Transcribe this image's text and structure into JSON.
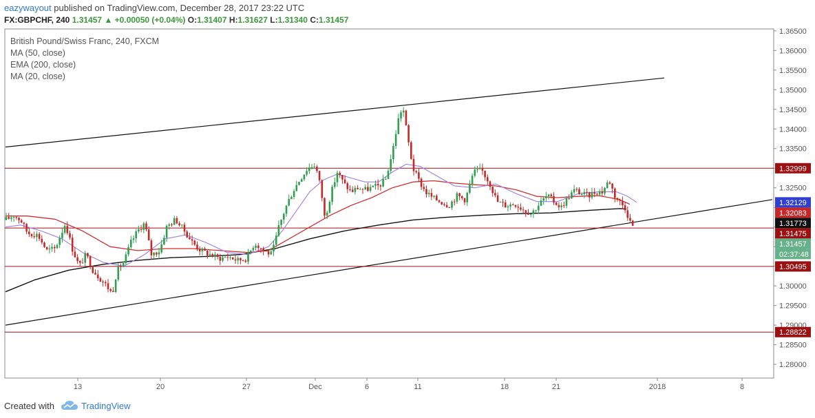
{
  "header": {
    "author": "eazywayout",
    "published": "published on TradingView.com, December 28, 2017 23:22 UTC",
    "symbol": "FX:GBPCHF, 240",
    "last": "1.31457",
    "change": "+0.00050 (+0.04%)",
    "o_label": "O:",
    "o": "1.31407",
    "h_label": "H:",
    "h": "1.31627",
    "l_label": "L:",
    "l": "1.31340",
    "c_label": "C:",
    "c": "1.31457"
  },
  "legend": {
    "title": "British Pound/Swiss Franc, 240, FXCM",
    "items": [
      "MA (50, close)",
      "EMA (200, close)",
      "MA (20, close)"
    ]
  },
  "footer": {
    "created_with": "Created with",
    "brand": "TradingView",
    "logo_icon": "tradingview-cloud-icon"
  },
  "colors": {
    "up": "#2e9e4f",
    "down": "#c62828",
    "ma50": "#d32f2f",
    "ema200": "#111111",
    "ma20": "#9b7fe6",
    "level": "#a01010",
    "trend": "#111111"
  },
  "chart_data": {
    "type": "candlestick",
    "ylim": [
      1.2765,
      1.3655
    ],
    "y_ticks": [
      "1.36500",
      "1.36000",
      "1.35500",
      "1.35000",
      "1.34500",
      "1.34000",
      "1.33500",
      "1.33000",
      "1.32500",
      "1.32000",
      "1.31500",
      "1.31000",
      "1.30500",
      "1.30000",
      "1.29500",
      "1.29000",
      "1.28500",
      "1.28000"
    ],
    "x_ticks": [
      {
        "label": "13",
        "x": 113
      },
      {
        "label": "20",
        "x": 233
      },
      {
        "label": "27",
        "x": 358
      },
      {
        "label": "Dec",
        "x": 458
      },
      {
        "label": "6",
        "x": 533
      },
      {
        "label": "11",
        "x": 607
      },
      {
        "label": "18",
        "x": 733
      },
      {
        "label": "21",
        "x": 808
      },
      {
        "label": "2018",
        "x": 955
      },
      {
        "label": "8",
        "x": 1078
      }
    ],
    "levels": [
      1.32999,
      1.31475,
      1.30495,
      1.28822
    ],
    "price_tags": [
      {
        "label": "1.32999",
        "value": 1.32999,
        "bg": "#9b1010",
        "fg": "#ffffff"
      },
      {
        "label": "1.32129",
        "value": 1.32129,
        "bg": "#2f3fd1",
        "fg": "#ffffff"
      },
      {
        "label": "1.32083",
        "value": 1.32083,
        "bg": "#c62828",
        "fg": "#ffffff"
      },
      {
        "label": "1.31773",
        "value": 1.31773,
        "bg": "#111111",
        "fg": "#ffffff"
      },
      {
        "label": "1.31475",
        "value": 1.31475,
        "bg": "#9b1010",
        "fg": "#ffffff"
      },
      {
        "label": "1.31457",
        "value": 1.31457,
        "bg": "#66b08a",
        "fg": "#ffffff"
      },
      {
        "label": "02:37:48",
        "value": 1.31255,
        "bg": "#66b08a",
        "fg": "#ffffff"
      },
      {
        "label": "1.30495",
        "value": 1.30495,
        "bg": "#9b1010",
        "fg": "#ffffff"
      },
      {
        "label": "1.28822",
        "value": 1.28822,
        "bg": "#9b1010",
        "fg": "#ffffff"
      }
    ],
    "trendlines": [
      {
        "x1": 8,
        "y1": 1.3354,
        "x2": 965,
        "y2": 1.353
      },
      {
        "x1": 8,
        "y1": 1.29,
        "x2": 1122,
        "y2": 1.322
      }
    ],
    "anchors": {
      "close": [
        [
          8,
          1.3168
        ],
        [
          20,
          1.318
        ],
        [
          30,
          1.3168
        ],
        [
          40,
          1.3135
        ],
        [
          55,
          1.313
        ],
        [
          68,
          1.309
        ],
        [
          80,
          1.3095
        ],
        [
          95,
          1.316
        ],
        [
          105,
          1.3095
        ],
        [
          115,
          1.305
        ],
        [
          125,
          1.308
        ],
        [
          135,
          1.304
        ],
        [
          145,
          1.302
        ],
        [
          155,
          1.3
        ],
        [
          163,
          1.298
        ],
        [
          170,
          1.304
        ],
        [
          180,
          1.306
        ],
        [
          190,
          1.311
        ],
        [
          200,
          1.314
        ],
        [
          210,
          1.316
        ],
        [
          220,
          1.308
        ],
        [
          232,
          1.309
        ],
        [
          242,
          1.315
        ],
        [
          255,
          1.317
        ],
        [
          268,
          1.314
        ],
        [
          280,
          1.311
        ],
        [
          292,
          1.309
        ],
        [
          305,
          1.308
        ],
        [
          318,
          1.307
        ],
        [
          332,
          1.3075
        ],
        [
          345,
          1.3065
        ],
        [
          358,
          1.307
        ],
        [
          370,
          1.311
        ],
        [
          383,
          1.309
        ],
        [
          395,
          1.308
        ],
        [
          405,
          1.315
        ],
        [
          415,
          1.32
        ],
        [
          425,
          1.324
        ],
        [
          435,
          1.327
        ],
        [
          447,
          1.33
        ],
        [
          458,
          1.331
        ],
        [
          466,
          1.325
        ],
        [
          472,
          1.317
        ],
        [
          480,
          1.323
        ],
        [
          490,
          1.329
        ],
        [
          500,
          1.326
        ],
        [
          510,
          1.324
        ],
        [
          520,
          1.325
        ],
        [
          530,
          1.3245
        ],
        [
          540,
          1.325
        ],
        [
          550,
          1.3255
        ],
        [
          560,
          1.327
        ],
        [
          570,
          1.334
        ],
        [
          578,
          1.342
        ],
        [
          585,
          1.346
        ],
        [
          592,
          1.338
        ],
        [
          600,
          1.33
        ],
        [
          608,
          1.327
        ],
        [
          618,
          1.324
        ],
        [
          628,
          1.3225
        ],
        [
          640,
          1.3215
        ],
        [
          652,
          1.3205
        ],
        [
          664,
          1.323
        ],
        [
          676,
          1.322
        ],
        [
          688,
          1.329
        ],
        [
          700,
          1.3295
        ],
        [
          712,
          1.326
        ],
        [
          722,
          1.3215
        ],
        [
          735,
          1.3205
        ],
        [
          748,
          1.321
        ],
        [
          760,
          1.3195
        ],
        [
          772,
          1.3185
        ],
        [
          784,
          1.321
        ],
        [
          795,
          1.323
        ],
        [
          805,
          1.3215
        ],
        [
          815,
          1.32
        ],
        [
          825,
          1.3225
        ],
        [
          835,
          1.3245
        ],
        [
          845,
          1.3235
        ],
        [
          855,
          1.323
        ],
        [
          865,
          1.324
        ],
        [
          875,
          1.324
        ],
        [
          885,
          1.327
        ],
        [
          893,
          1.323
        ],
        [
          900,
          1.3215
        ],
        [
          908,
          1.32
        ],
        [
          915,
          1.3165
        ],
        [
          922,
          1.3146
        ]
      ],
      "ma50": [
        [
          8,
          1.3178
        ],
        [
          40,
          1.3178
        ],
        [
          80,
          1.317
        ],
        [
          120,
          1.314
        ],
        [
          160,
          1.31
        ],
        [
          200,
          1.309
        ],
        [
          240,
          1.3095
        ],
        [
          280,
          1.3095
        ],
        [
          320,
          1.309
        ],
        [
          360,
          1.3085
        ],
        [
          390,
          1.309
        ],
        [
          420,
          1.312
        ],
        [
          450,
          1.315
        ],
        [
          480,
          1.318
        ],
        [
          510,
          1.3205
        ],
        [
          540,
          1.3225
        ],
        [
          570,
          1.325
        ],
        [
          600,
          1.3265
        ],
        [
          630,
          1.3268
        ],
        [
          660,
          1.3262
        ],
        [
          690,
          1.3258
        ],
        [
          720,
          1.3255
        ],
        [
          750,
          1.3245
        ],
        [
          780,
          1.3228
        ],
        [
          810,
          1.3225
        ],
        [
          840,
          1.3228
        ],
        [
          870,
          1.323
        ],
        [
          900,
          1.322
        ],
        [
          915,
          1.3208
        ]
      ],
      "ema200": [
        [
          8,
          1.2985
        ],
        [
          50,
          1.3015
        ],
        [
          100,
          1.304
        ],
        [
          150,
          1.3055
        ],
        [
          200,
          1.3065
        ],
        [
          250,
          1.3072
        ],
        [
          300,
          1.3075
        ],
        [
          350,
          1.308
        ],
        [
          400,
          1.3095
        ],
        [
          450,
          1.312
        ],
        [
          500,
          1.314
        ],
        [
          550,
          1.3155
        ],
        [
          600,
          1.3168
        ],
        [
          650,
          1.3175
        ],
        [
          700,
          1.318
        ],
        [
          750,
          1.3184
        ],
        [
          800,
          1.3186
        ],
        [
          850,
          1.3192
        ],
        [
          900,
          1.3197
        ],
        [
          910,
          1.3196
        ]
      ],
      "ma20": [
        [
          8,
          1.315
        ],
        [
          30,
          1.3155
        ],
        [
          60,
          1.314
        ],
        [
          90,
          1.312
        ],
        [
          120,
          1.3085
        ],
        [
          150,
          1.306
        ],
        [
          180,
          1.305
        ],
        [
          210,
          1.308
        ],
        [
          240,
          1.312
        ],
        [
          270,
          1.313
        ],
        [
          300,
          1.311
        ],
        [
          330,
          1.3085
        ],
        [
          360,
          1.308
        ],
        [
          390,
          1.31
        ],
        [
          410,
          1.314
        ],
        [
          430,
          1.319
        ],
        [
          450,
          1.324
        ],
        [
          470,
          1.327
        ],
        [
          490,
          1.3285
        ],
        [
          510,
          1.3275
        ],
        [
          530,
          1.3265
        ],
        [
          550,
          1.3265
        ],
        [
          570,
          1.329
        ],
        [
          590,
          1.331
        ],
        [
          610,
          1.3305
        ],
        [
          630,
          1.3285
        ],
        [
          660,
          1.3255
        ],
        [
          690,
          1.325
        ],
        [
          720,
          1.326
        ],
        [
          750,
          1.3235
        ],
        [
          780,
          1.3215
        ],
        [
          810,
          1.3215
        ],
        [
          840,
          1.3235
        ],
        [
          870,
          1.324
        ],
        [
          895,
          1.324
        ],
        [
          910,
          1.323
        ],
        [
          925,
          1.3213
        ]
      ]
    }
  }
}
